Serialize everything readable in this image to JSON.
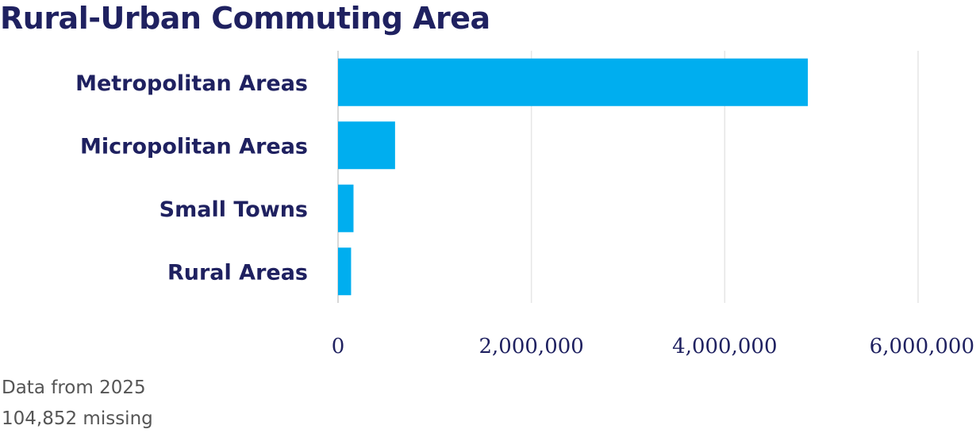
{
  "title": "Rural-Urban Commuting Area",
  "chart_data": {
    "type": "bar",
    "orientation": "horizontal",
    "title": "Rural-Urban Commuting Area",
    "categories": [
      "Metropolitan Areas",
      "Micropolitan Areas",
      "Small Towns",
      "Rural Areas"
    ],
    "values": [
      4860000,
      590000,
      160000,
      135000
    ],
    "xlim": [
      0,
      6000000
    ],
    "xticks": [
      0,
      2000000,
      4000000,
      6000000
    ],
    "xtick_labels": [
      "0",
      "2,000,000",
      "4,000,000",
      "6,000,000"
    ],
    "grid": true,
    "legend": "none",
    "bar_color": "#00aeef",
    "label_color": "#1f2160"
  },
  "footnotes": {
    "year": "Data from 2025",
    "missing": "104,852 missing"
  }
}
